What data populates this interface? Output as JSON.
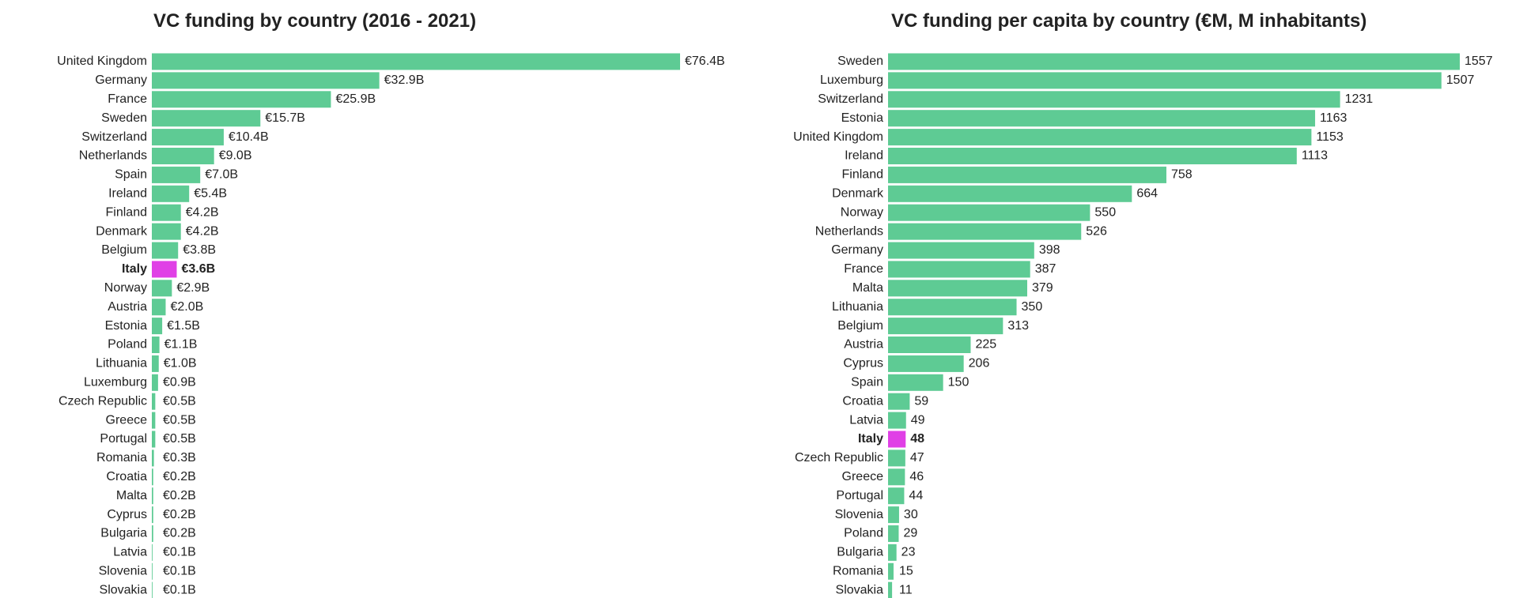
{
  "chart_data": [
    {
      "type": "bar",
      "orientation": "horizontal",
      "title": "VC funding by country (2016 - 2021)",
      "categories": [
        "United Kingdom",
        "Germany",
        "France",
        "Sweden",
        "Switzerland",
        "Netherlands",
        "Spain",
        "Ireland",
        "Finland",
        "Denmark",
        "Belgium",
        "Italy",
        "Norway",
        "Austria",
        "Estonia",
        "Poland",
        "Lithuania",
        "Luxemburg",
        "Czech Republic",
        "Greece",
        "Portugal",
        "Romania",
        "Croatia",
        "Malta",
        "Cyprus",
        "Bulgaria",
        "Latvia",
        "Slovenia",
        "Slovakia"
      ],
      "values": [
        76.4,
        32.9,
        25.9,
        15.7,
        10.4,
        9.0,
        7.0,
        5.4,
        4.2,
        4.2,
        3.8,
        3.6,
        2.9,
        2.0,
        1.5,
        1.1,
        1.0,
        0.9,
        0.5,
        0.5,
        0.5,
        0.3,
        0.2,
        0.2,
        0.2,
        0.2,
        0.1,
        0.1,
        0.1
      ],
      "value_labels": [
        "€76.4B",
        "€32.9B",
        "€25.9B",
        "€15.7B",
        "€10.4B",
        "€9.0B",
        "€7.0B",
        "€5.4B",
        "€4.2B",
        "€4.2B",
        "€3.8B",
        "€3.6B",
        "€2.9B",
        "€2.0B",
        "€1.5B",
        "€1.1B",
        "€1.0B",
        "€0.9B",
        "€0.5B",
        "€0.5B",
        "€0.5B",
        "€0.3B",
        "€0.2B",
        "€0.2B",
        "€0.2B",
        "€0.2B",
        "€0.1B",
        "€0.1B",
        "€0.1B"
      ],
      "color": "#5ecb94",
      "colors": [
        "#5ecb94",
        "#5ecb94",
        "#5ecb94",
        "#5ecb94",
        "#5ecb94",
        "#5ecb94",
        "#5ecb94",
        "#5ecb94",
        "#5ecb94",
        "#5ecb94",
        "#5ecb94",
        "#e040e6",
        "#5ecb94",
        "#5ecb94",
        "#5ecb94",
        "#5ecb94",
        "#5ecb94",
        "#5ecb94",
        "#5ecb94",
        "#5ecb94",
        "#5ecb94",
        "#5ecb94",
        "#5ecb94",
        "#5ecb94",
        "#5ecb94",
        "#5ecb94",
        "#5ecb94",
        "#5ecb94",
        "#5ecb94"
      ]
    },
    {
      "type": "bar",
      "orientation": "horizontal",
      "title": "VC funding per capita by country (€M, M inhabitants)",
      "categories": [
        "Sweden",
        "Luxemburg",
        "Switzerland",
        "Estonia",
        "United Kingdom",
        "Ireland",
        "Finland",
        "Denmark",
        "Norway",
        "Netherlands",
        "Germany",
        "France",
        "Malta",
        "Lithuania",
        "Belgium",
        "Austria",
        "Cyprus",
        "Spain",
        "Croatia",
        "Latvia",
        "Italy",
        "Czech Republic",
        "Greece",
        "Portugal",
        "Slovenia",
        "Poland",
        "Bulgaria",
        "Romania",
        "Slovakia"
      ],
      "values": [
        1557,
        1507,
        1231,
        1163,
        1153,
        1113,
        758,
        664,
        550,
        526,
        398,
        387,
        379,
        350,
        313,
        225,
        206,
        150,
        59,
        49,
        48,
        47,
        46,
        44,
        30,
        29,
        23,
        15,
        11
      ],
      "color": "#5ecb94",
      "colors": [
        "#5ecb94",
        "#5ecb94",
        "#5ecb94",
        "#5ecb94",
        "#5ecb94",
        "#5ecb94",
        "#5ecb94",
        "#5ecb94",
        "#5ecb94",
        "#5ecb94",
        "#5ecb94",
        "#5ecb94",
        "#5ecb94",
        "#5ecb94",
        "#5ecb94",
        "#5ecb94",
        "#5ecb94",
        "#5ecb94",
        "#5ecb94",
        "#5ecb94",
        "#e040e6",
        "#5ecb94",
        "#5ecb94",
        "#5ecb94",
        "#5ecb94",
        "#5ecb94",
        "#5ecb94",
        "#5ecb94",
        "#5ecb94"
      ]
    }
  ]
}
